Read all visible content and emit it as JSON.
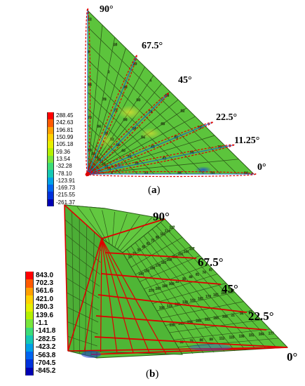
{
  "figure_a": {
    "angles": [
      "90°",
      "67.5°",
      "45°",
      "22.5°",
      "11.25°",
      "0°"
    ],
    "legend_values": [
      "288.45",
      "242.63",
      "196.81",
      "150.99",
      "105.18",
      "59.36",
      "13.54",
      "-32.28",
      "-78.10",
      "-123.91",
      "-169.73",
      "-215.55",
      "-261.37"
    ],
    "caption_open": "(",
    "caption_letter": "a",
    "caption_close": ")"
  },
  "figure_b": {
    "angles": [
      "90°",
      "67.5°",
      "45°",
      "22.5°",
      "0°"
    ],
    "legend_values": [
      "843.0",
      "702.3",
      "561.6",
      "421.0",
      "280.3",
      "139.6",
      "-1.1",
      "-141.8",
      "-282.5",
      "-423.2",
      "-563.8",
      "-704.5",
      "-845.2"
    ],
    "caption_open": "(",
    "caption_letter": "b",
    "caption_close": ")"
  },
  "colors": {
    "legend_scale": [
      "#ff0000",
      "#ff5a00",
      "#ffa000",
      "#ffd200",
      "#e6f000",
      "#b4f000",
      "#78e63c",
      "#3cdc78",
      "#14c8b4",
      "#00a0e6",
      "#0064f0",
      "#0032dc",
      "#0000b4"
    ],
    "mesh_green": "#5ec83a",
    "mesh_line": "#2e5a1a",
    "red_line": "#dd0000"
  }
}
